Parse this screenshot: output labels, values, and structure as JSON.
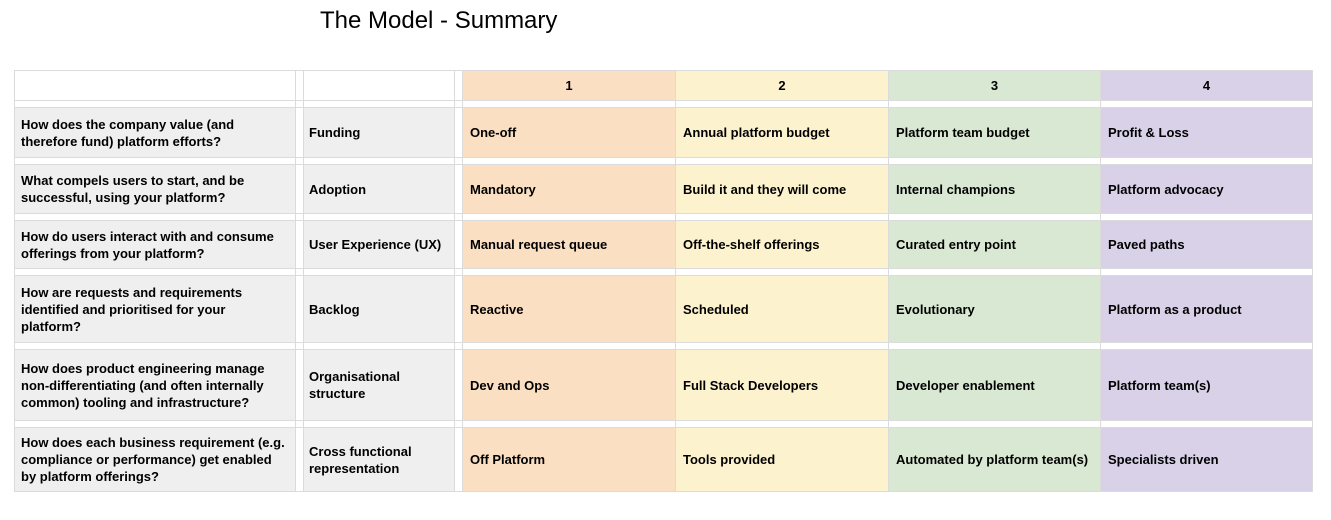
{
  "title": "The Model - Summary",
  "table": {
    "level_headers": [
      "1",
      "2",
      "3",
      "4"
    ],
    "rows": [
      {
        "question": "How does the company value (and therefore fund) platform efforts?",
        "category": "Funding",
        "levels": [
          "One-off",
          "Annual platform budget",
          "Platform team budget",
          "Profit & Loss"
        ]
      },
      {
        "question": "What compels users to start, and be successful, using your platform?",
        "category": "Adoption",
        "levels": [
          "Mandatory",
          "Build it and they will come",
          "Internal champions",
          "Platform advocacy"
        ]
      },
      {
        "question": "How do users interact with and consume offerings from your platform?",
        "category": "User Experience (UX)",
        "levels": [
          "Manual request queue",
          "Off-the-shelf offerings",
          "Curated entry point",
          "Paved paths"
        ]
      },
      {
        "question": "How are requests and requirements identified and prioritised for your platform?",
        "category": "Backlog",
        "levels": [
          "Reactive",
          "Scheduled",
          "Evolutionary",
          "Platform as a product"
        ]
      },
      {
        "question": "How does product engineering manage non-differentiating (and often internally common) tooling and infrastructure?",
        "category": "Organisational structure",
        "levels": [
          "Dev and Ops",
          "Full Stack Developers",
          "Developer enablement",
          "Platform team(s)"
        ]
      },
      {
        "question": "How does each business requirement (e.g. compliance or performance) get enabled by platform offerings?",
        "category": "Cross functional representation",
        "levels": [
          "Off Platform",
          "Tools provided",
          "Automated by platform team(s)",
          "Specialists driven"
        ]
      }
    ],
    "colors": {
      "level1_bg": "#fbdfc2",
      "level2_bg": "#fdf2ce",
      "level3_bg": "#d9e8d2",
      "level4_bg": "#d8d1e7",
      "question_bg": "#efefef",
      "gridline": "#dbdbdb"
    }
  }
}
